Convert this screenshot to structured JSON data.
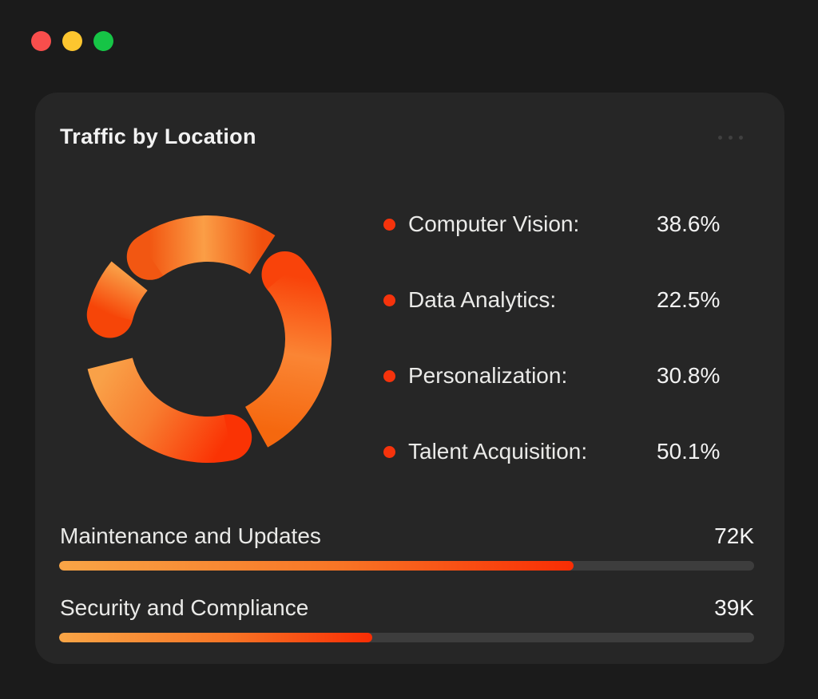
{
  "window": {
    "controls": [
      {
        "name": "close",
        "color": "#F94E4C"
      },
      {
        "name": "minimize",
        "color": "#FDC62F"
      },
      {
        "name": "maximize",
        "color": "#16C546"
      }
    ]
  },
  "card": {
    "title": "Traffic by Location",
    "more_options_icon": "ellipsis-icon"
  },
  "colors": {
    "page_background": "#1B1B1B",
    "card_background": "#262626",
    "legend_bullet": "#F5330C",
    "progress_track": "#3D3D3D",
    "accent_orange_light": "#F9A546",
    "accent_orange_deep": "#F92D04"
  },
  "chart_data": [
    {
      "type": "pie",
      "variant": "donut",
      "title": "Traffic by Location",
      "legend_position": "right",
      "unit": "%",
      "items": [
        {
          "label": "Computer Vision",
          "label_display": "Computer Vision:",
          "value": 38.6,
          "value_display": "38.6%"
        },
        {
          "label": "Data Analytics",
          "label_display": "Data Analytics:",
          "value": 22.5,
          "value_display": "22.5%"
        },
        {
          "label": "Personalization",
          "label_display": "Personalization:",
          "value": 30.8,
          "value_display": "30.8%"
        },
        {
          "label": "Talent Acquisition",
          "label_display": "Talent Acquisition:",
          "value": 50.1,
          "value_display": "50.1%"
        }
      ],
      "bullet_color": "#F5330C",
      "donut_geometry": {
        "center": 165,
        "mid_radius": 126,
        "stroke_width": 58,
        "segments": [
          {
            "name": "segment-personalization",
            "start": 325,
            "end": 393,
            "stops": [
              [
                "0%",
                "#F25712"
              ],
              [
                "48%",
                "#FB9E46"
              ],
              [
                "100%",
                "#F0500E"
              ]
            ]
          },
          {
            "name": "segment-talent-acquisition",
            "start": 50,
            "end": 151,
            "stops": [
              [
                "0%",
                "#F9430A"
              ],
              [
                "50%",
                "#FA8534"
              ],
              [
                "100%",
                "#F5680F"
              ]
            ]
          },
          {
            "name": "segment-computer-vision",
            "start": 168,
            "end": 256,
            "stops": [
              [
                "0%",
                "#FA3304"
              ],
              [
                "55%",
                "#F87C2F"
              ],
              [
                "100%",
                "#F9A148"
              ]
            ]
          },
          {
            "name": "segment-data-analytics",
            "start": 284,
            "end": 309,
            "stops": [
              [
                "0%",
                "#F64508"
              ],
              [
                "100%",
                "#F99B44"
              ]
            ]
          }
        ]
      }
    },
    {
      "type": "bar",
      "orientation": "horizontal",
      "bars": [
        {
          "label": "Maintenance and Updates",
          "value_display": "72K",
          "percent": 74
        },
        {
          "label": "Security and Compliance",
          "value_display": "39K",
          "percent": 45
        }
      ],
      "track_color": "#3D3D3D",
      "fill_gradient": [
        "#F9A546",
        "#F87425",
        "#F92D04"
      ]
    }
  ]
}
